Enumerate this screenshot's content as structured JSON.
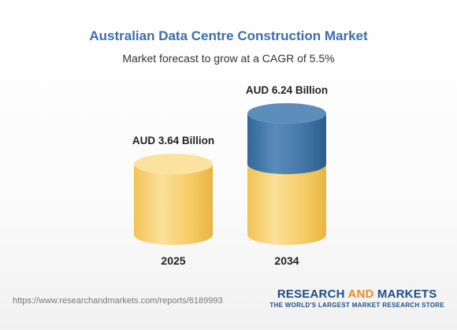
{
  "chart_data": {
    "type": "bar",
    "title": "Australian Data Centre Construction Market",
    "subtitle": "Market forecast to grow at a CAGR of 5.5%",
    "categories": [
      "2025",
      "2034"
    ],
    "values": [
      3.64,
      6.24
    ],
    "value_labels": [
      "AUD 3.64 Billion",
      "AUD 6.24 Billion"
    ],
    "unit": "AUD Billion",
    "ylim": [
      0,
      6.24
    ],
    "colors": {
      "base": "#f5c961",
      "base_top": "#fbe39f",
      "growth": "#3a6fa0",
      "growth_top": "#5d8dbb"
    }
  },
  "footer": {
    "url": "https://www.researchandmarkets.com/reports/6189993",
    "brand_part1": "RESEARCH ",
    "brand_part2": "AND ",
    "brand_part3": "MARKETS",
    "brand_tagline": "THE WORLD'S LARGEST MARKET RESEARCH STORE"
  }
}
